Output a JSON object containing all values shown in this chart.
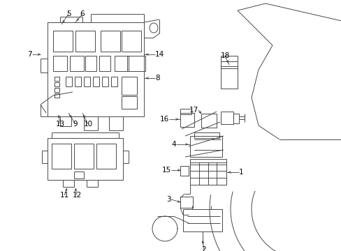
{
  "bg_color": "#ffffff",
  "line_color": "#4a4a4a",
  "text_color": "#000000",
  "figsize": [
    4.89,
    3.6
  ],
  "dpi": 100,
  "xlim": [
    0,
    489
  ],
  "ylim": [
    0,
    360
  ]
}
